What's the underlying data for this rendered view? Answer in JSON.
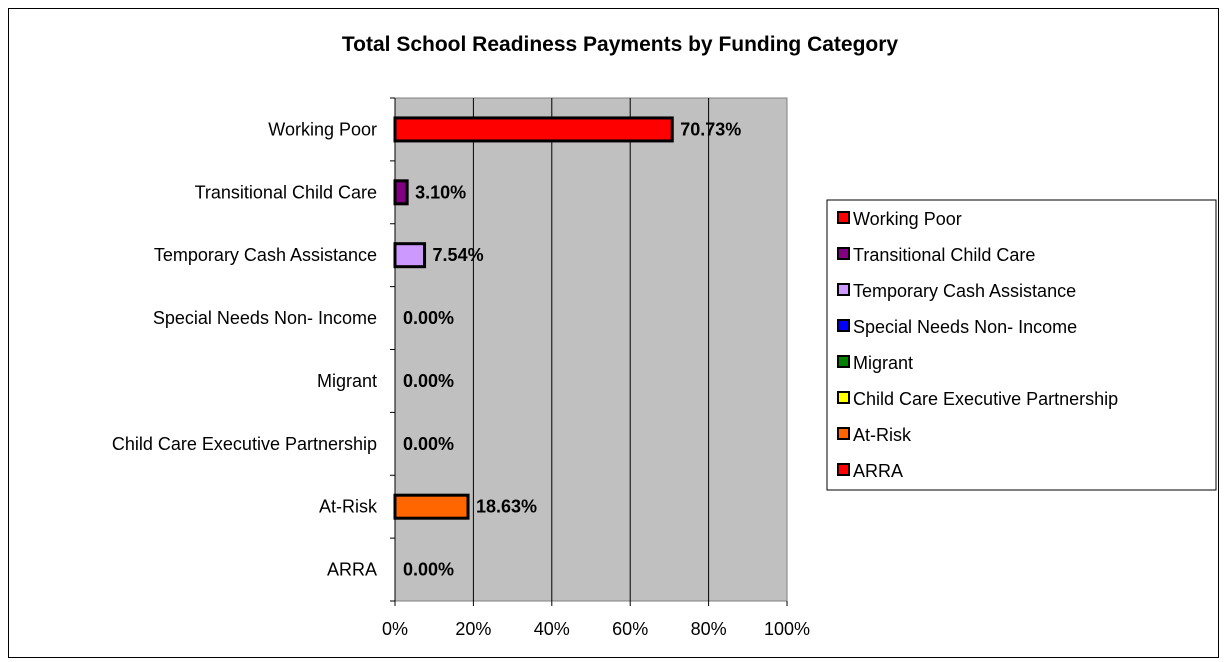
{
  "chart_data": {
    "type": "bar",
    "orientation": "horizontal",
    "title": "Total School Readiness Payments by Funding Category",
    "categories": [
      "Working Poor",
      "Transitional Child Care",
      "Temporary Cash Assistance",
      "Special Needs Non- Income",
      "Migrant",
      "Child Care Executive Partnership",
      "At-Risk",
      "ARRA"
    ],
    "values": [
      70.73,
      3.1,
      7.54,
      0.0,
      0.0,
      0.0,
      18.63,
      0.0
    ],
    "data_labels": [
      "70.73%",
      "3.10%",
      "7.54%",
      "0.00%",
      "0.00%",
      "0.00%",
      "18.63%",
      "0.00%"
    ],
    "colors": [
      "#ff0000",
      "#800080",
      "#cc99ff",
      "#0000ff",
      "#008000",
      "#ffff00",
      "#ff6600",
      "#ff0000"
    ],
    "x_ticks": [
      "0%",
      "20%",
      "40%",
      "60%",
      "80%",
      "100%"
    ],
    "xlim": [
      0,
      100
    ],
    "xlabel": "",
    "ylabel": "",
    "grid": true,
    "plot_background": "#c0c0c0",
    "legend": {
      "position": "right",
      "entries": [
        "Working Poor",
        "Transitional Child Care",
        "Temporary Cash Assistance",
        "Special Needs Non- Income",
        "Migrant",
        "Child Care Executive Partnership",
        "At-Risk",
        "ARRA"
      ]
    }
  }
}
